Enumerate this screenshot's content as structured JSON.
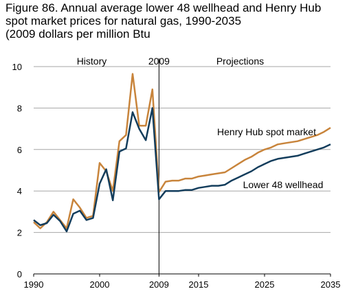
{
  "title_lines": [
    "Figure 86. Annual average lower 48 wellhead and Henry Hub",
    "spot market prices for natural gas, 1990-2035",
    "(2009 dollars per million Btu"
  ],
  "chart_data": {
    "type": "line",
    "xlim": [
      1990,
      2035
    ],
    "ylim": [
      0,
      10
    ],
    "x_ticks": [
      1990,
      2000,
      2009,
      2015,
      2025,
      2035
    ],
    "y_ticks": [
      0,
      2,
      4,
      6,
      8,
      10
    ],
    "grid": true,
    "divider_x": 2009,
    "annotations": {
      "history": "History",
      "divider_year": "2009",
      "projections": "Projections"
    },
    "series": [
      {
        "name": "Henry Hub spot market",
        "color": "#c8843b",
        "x": [
          1990,
          1991,
          1992,
          1993,
          1994,
          1995,
          1996,
          1997,
          1998,
          1999,
          2000,
          2001,
          2002,
          2003,
          2004,
          2005,
          2006,
          2007,
          2008,
          2009,
          2010,
          2011,
          2012,
          2013,
          2014,
          2015,
          2016,
          2017,
          2018,
          2019,
          2020,
          2021,
          2022,
          2023,
          2024,
          2025,
          2026,
          2027,
          2028,
          2029,
          2030,
          2031,
          2032,
          2033,
          2034,
          2035
        ],
        "y": [
          2.5,
          2.2,
          2.5,
          3.0,
          2.6,
          2.2,
          3.6,
          3.2,
          2.7,
          2.8,
          5.35,
          4.95,
          4.0,
          6.4,
          6.7,
          9.65,
          7.15,
          7.15,
          8.9,
          3.95,
          4.45,
          4.5,
          4.5,
          4.6,
          4.6,
          4.7,
          4.75,
          4.8,
          4.85,
          4.9,
          5.1,
          5.3,
          5.5,
          5.65,
          5.85,
          6.0,
          6.1,
          6.25,
          6.3,
          6.35,
          6.4,
          6.5,
          6.6,
          6.7,
          6.85,
          7.05
        ]
      },
      {
        "name": "Lower 48 wellhead",
        "color": "#133d5c",
        "x": [
          1990,
          1991,
          1992,
          1993,
          1994,
          1995,
          1996,
          1997,
          1998,
          1999,
          2000,
          2001,
          2002,
          2003,
          2004,
          2005,
          2006,
          2007,
          2008,
          2009,
          2010,
          2011,
          2012,
          2013,
          2014,
          2015,
          2016,
          2017,
          2018,
          2019,
          2020,
          2021,
          2022,
          2023,
          2024,
          2025,
          2026,
          2027,
          2028,
          2029,
          2030,
          2031,
          2032,
          2033,
          2034,
          2035
        ],
        "y": [
          2.6,
          2.35,
          2.45,
          2.85,
          2.55,
          2.05,
          2.9,
          3.05,
          2.6,
          2.7,
          4.35,
          5.05,
          3.55,
          5.9,
          6.05,
          7.8,
          7.0,
          6.45,
          8.0,
          3.6,
          4.0,
          4.0,
          4.0,
          4.05,
          4.05,
          4.15,
          4.2,
          4.25,
          4.25,
          4.3,
          4.5,
          4.65,
          4.8,
          4.95,
          5.15,
          5.3,
          5.45,
          5.55,
          5.6,
          5.65,
          5.7,
          5.8,
          5.9,
          6.0,
          6.1,
          6.25
        ]
      }
    ]
  }
}
